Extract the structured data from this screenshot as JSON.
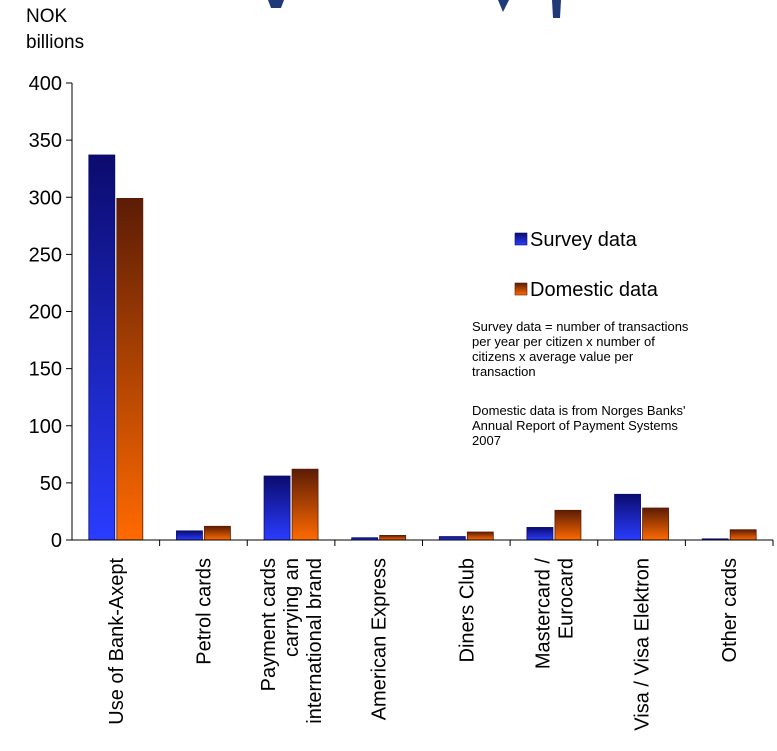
{
  "chart_data": {
    "type": "bar",
    "unit_label": [
      "NOK",
      "billions"
    ],
    "categories": [
      [
        "Use of Bank-Axept"
      ],
      [
        "Petrol cards"
      ],
      [
        "Payment cards",
        "carrying an",
        "international brand"
      ],
      [
        "American Express"
      ],
      [
        "Diners Club"
      ],
      [
        "Mastercard /",
        "Eurocard"
      ],
      [
        "Visa / Visa Elektron"
      ],
      [
        "Other cards"
      ]
    ],
    "series": [
      {
        "name": "Survey data",
        "values": [
          337,
          8,
          56,
          2,
          3,
          11,
          40,
          1
        ]
      },
      {
        "name": "Domestic data",
        "values": [
          299,
          12,
          62,
          4,
          7,
          26,
          28,
          9
        ]
      }
    ],
    "ylim": [
      0,
      400
    ],
    "yticks": [
      0,
      50,
      100,
      150,
      200,
      250,
      300,
      350,
      400
    ],
    "grid": false,
    "legend_position": "right",
    "annotations": [
      [
        "Survey data = number of transactions",
        "per year per citizen  x number of",
        "citizens x average value per",
        "transaction"
      ],
      [
        "Domestic data is from Norges Banks'",
        "Annual Report of Payment Systems",
        "2007"
      ]
    ]
  },
  "colors": {
    "survey_dark": "#0b0b6e",
    "survey_light": "#2a3cff",
    "domestic_dark": "#5c1c05",
    "domestic_light": "#ff6a00",
    "title": "#1f3a78"
  }
}
